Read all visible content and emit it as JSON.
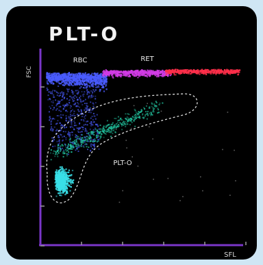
{
  "chart_data": {
    "type": "scatter",
    "title": "PLT-O",
    "xlabel": "SFL",
    "ylabel": "FSC",
    "grid": false,
    "legend": "none",
    "x_ticks": 5,
    "y_ticks": 5,
    "annotations": [
      "RBC",
      "RET",
      "PLT-O"
    ],
    "populations": [
      {
        "label": "RBC",
        "color": "#4a5cff"
      },
      {
        "label": "RET",
        "color": "#d23ce6"
      },
      {
        "label": "RET",
        "color": "#ff2f4a"
      },
      {
        "label": "PLT-O",
        "color": "#23c9a3"
      },
      {
        "label": "PLT-O",
        "color": "#39e0e8"
      }
    ]
  }
}
